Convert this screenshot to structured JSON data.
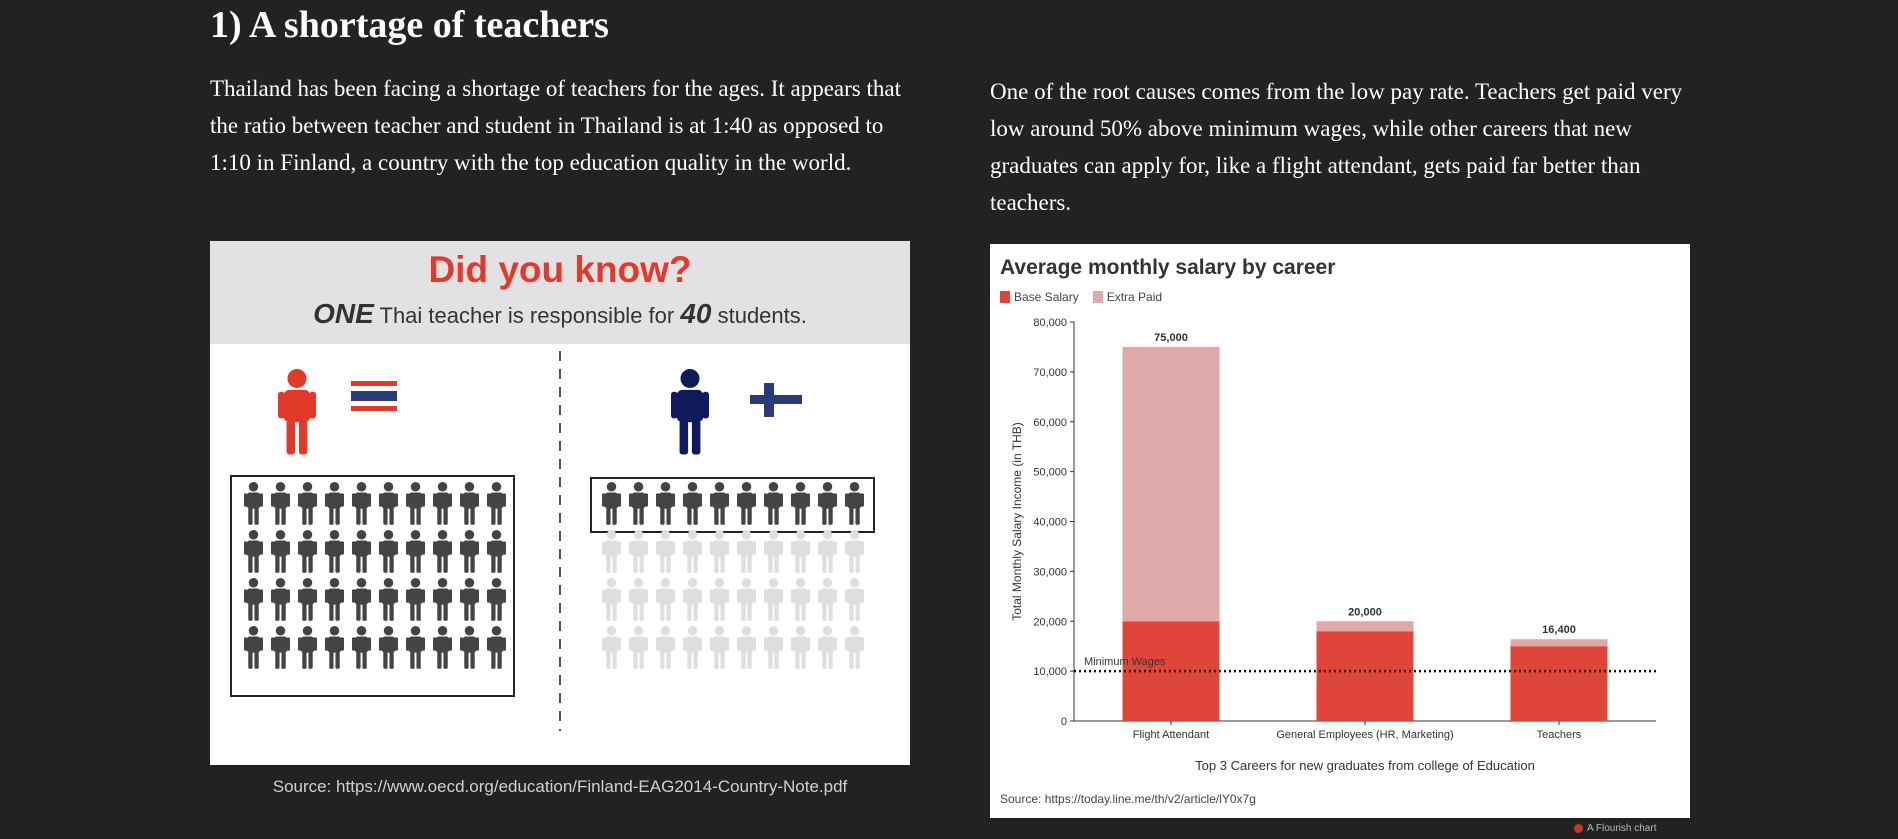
{
  "section": {
    "heading": "1) A shortage of teachers",
    "para_left": "Thailand has been facing a shortage of teachers for the ages. It appears that the ratio between teacher and student in Thailand is at 1:40 as opposed to 1:10 in Finland, a country with the top education quality in the world.",
    "para_right": "One of the root causes comes from the low pay rate. Teachers get paid very low around 50% above minimum wages, while other careers that new graduates can apply for, like a flight attendant, gets paid far better than teachers."
  },
  "infographic": {
    "title": "Did you know?",
    "sub_one": "ONE",
    "sub_mid": " Thai teacher is responsible for ",
    "sub_num": "40",
    "sub_end": " students.",
    "left": {
      "country": "Thailand",
      "ratio": "1:40",
      "color": "#e13a2b",
      "students": 40
    },
    "right": {
      "country": "Finland",
      "ratio": "1:10",
      "color": "#0e1a5b",
      "students": 10
    },
    "caption": "Source: https://www.oecd.org/education/Finland-EAG2014-Country-Note.pdf"
  },
  "chart_data": {
    "type": "bar",
    "title": "Average monthly salary by career",
    "legend": [
      "Base Salary",
      "Extra Paid"
    ],
    "colors": {
      "base": "#e0453a",
      "extra": "#dfa9a9"
    },
    "categories": [
      "Flight Attendant",
      "General Employees (HR, Marketing)",
      "Teachers"
    ],
    "series": [
      {
        "name": "Base Salary",
        "values": [
          20000,
          18000,
          15000
        ]
      },
      {
        "name": "Extra Paid",
        "values": [
          55000,
          2000,
          1400
        ]
      }
    ],
    "totals_labels": [
      "75,000",
      "20,000",
      "16,400"
    ],
    "ylim": [
      0,
      80000
    ],
    "yticks": [
      0,
      10000,
      20000,
      30000,
      40000,
      50000,
      60000,
      70000,
      80000
    ],
    "ytick_labels": [
      "0",
      "10,000",
      "20,000",
      "30,000",
      "40,000",
      "50,000",
      "60,000",
      "70,000",
      "80,000"
    ],
    "ylabel": "Total Monthly Salary Income (in THB)",
    "xlabel": "Top 3 Careers for new graduates from college of Education",
    "reference_line": {
      "label": "Minimum Wages",
      "value": 10000
    },
    "source": "Source: https://today.line.me/th/v2/article/lY0x7g",
    "stacked": true
  },
  "footer": {
    "flourish": "A Flourish chart"
  }
}
